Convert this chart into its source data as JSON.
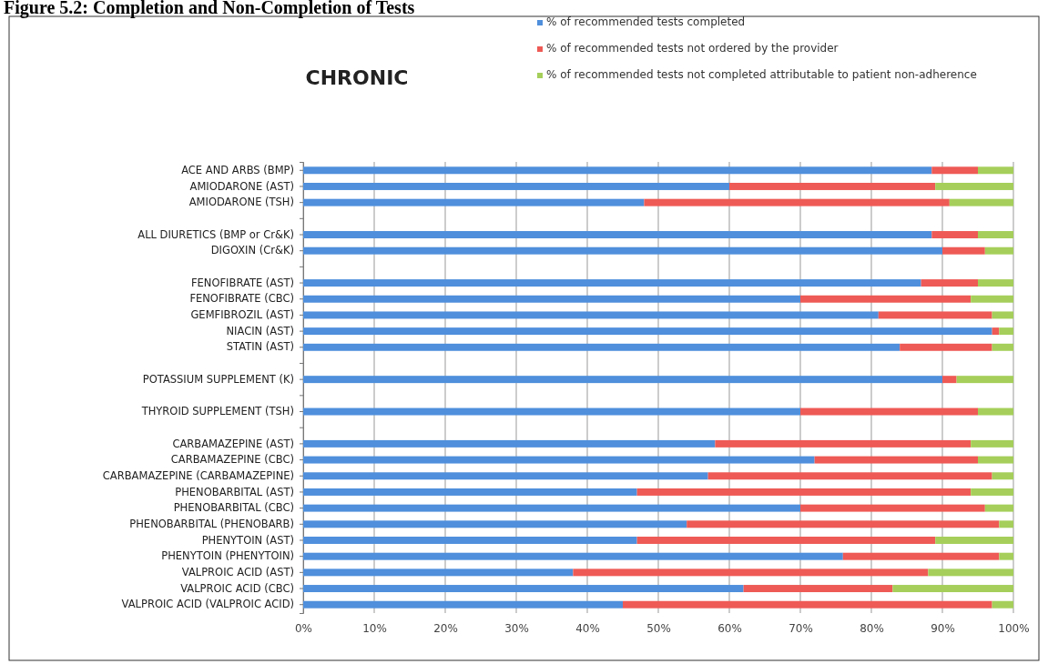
{
  "chart_data": {
    "type": "bar",
    "orientation": "horizontal",
    "stacked": true,
    "title": "Figure 5.2: Completion and Non-Completion of Tests",
    "subtitle": "CHRONIC",
    "categories": [
      "ACE AND ARBS (BMP)",
      "AMIODARONE (AST)",
      "AMIODARONE (TSH)",
      null,
      "ALL DIURETICS (BMP or Cr&K)",
      "DIGOXIN (Cr&K)",
      null,
      "FENOFIBRATE (AST)",
      "FENOFIBRATE (CBC)",
      "GEMFIBROZIL (AST)",
      "NIACIN (AST)",
      "STATIN (AST)",
      null,
      "POTASSIUM SUPPLEMENT (K)",
      null,
      "THYROID SUPPLEMENT (TSH)",
      null,
      "CARBAMAZEPINE (AST)",
      "CARBAMAZEPINE (CBC)",
      "CARBAMAZEPINE (CARBAMAZEPINE)",
      "PHENOBARBITAL (AST)",
      "PHENOBARBITAL (CBC)",
      "PHENOBARBITAL (PHENOBARB)",
      "PHENYTOIN (AST)",
      "PHENYTOIN (PHENYTOIN)",
      "VALPROIC ACID (AST)",
      "VALPROIC ACID (CBC)",
      "VALPROIC ACID (VALPROIC ACID)"
    ],
    "series": [
      {
        "name": "% of recommended tests completed",
        "color": "#4f8fdc",
        "values": [
          88.5,
          60,
          48,
          null,
          88.5,
          90,
          null,
          87,
          70,
          81,
          97,
          84,
          null,
          90,
          null,
          70,
          null,
          58,
          72,
          57,
          47,
          70,
          54,
          47,
          76,
          38,
          62,
          45
        ]
      },
      {
        "name": "% of recommended tests not ordered by the provider",
        "color": "#ee5a55",
        "values": [
          6.5,
          29,
          43,
          null,
          6.5,
          6,
          null,
          8,
          24,
          16,
          1,
          13,
          null,
          2,
          null,
          25,
          null,
          36,
          23,
          40,
          47,
          26,
          44,
          42,
          22,
          50,
          21,
          52
        ]
      },
      {
        "name": "% of recommended tests not completed attributable to patient non-adherence",
        "color": "#a5cf5a",
        "values": [
          5,
          11,
          9,
          null,
          5,
          4,
          null,
          5,
          6,
          3,
          2,
          3,
          null,
          8,
          null,
          5,
          null,
          6,
          5,
          3,
          6,
          4,
          2,
          11,
          2,
          12,
          17,
          3
        ]
      }
    ],
    "xlim": [
      0,
      100
    ],
    "xticks": [
      {
        "value": 0,
        "label": "0%"
      },
      {
        "value": 10,
        "label": "10%"
      },
      {
        "value": 20,
        "label": "20%"
      },
      {
        "value": 30,
        "label": "30%"
      },
      {
        "value": 40,
        "label": "40%"
      },
      {
        "value": 50,
        "label": "50%"
      },
      {
        "value": 60,
        "label": "60%"
      },
      {
        "value": 70,
        "label": "70%"
      },
      {
        "value": 80,
        "label": "80%"
      },
      {
        "value": 90,
        "label": "90%"
      },
      {
        "value": 100,
        "label": "100%"
      }
    ],
    "grid": "x",
    "legend": "top right"
  }
}
